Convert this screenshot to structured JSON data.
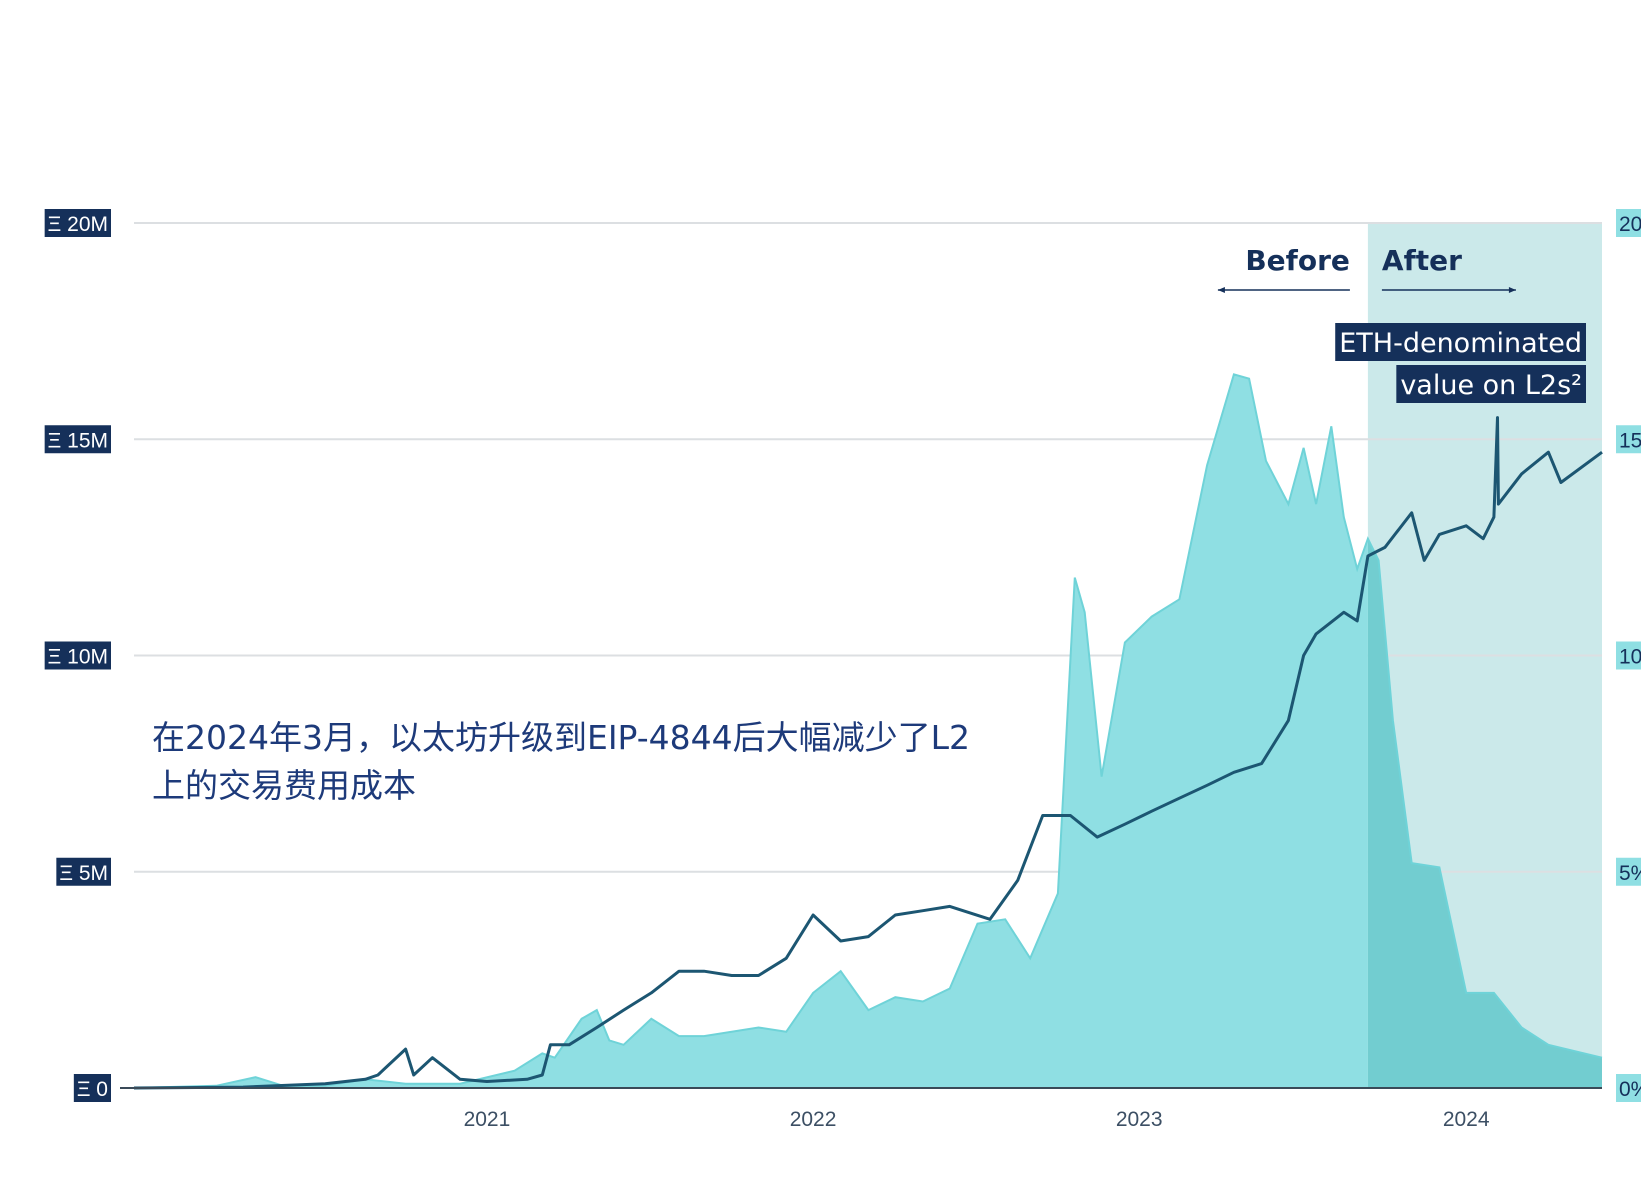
{
  "chart_data": {
    "type": "area",
    "title": "",
    "annotation_lines": [
      "在2024年3月，以太坊升级到EIP-4844后大幅减少了L2",
      "上的交易费用成本"
    ],
    "x_ticks": [
      "2021",
      "2022",
      "2023",
      "2024"
    ],
    "xlim": [
      "2020-06-01",
      "2024-11-30"
    ],
    "y_left": {
      "ticks": [
        "Ξ 0",
        "Ξ 5M",
        "Ξ 10M",
        "Ξ 15M",
        "Ξ 20M"
      ],
      "ylim": [
        0,
        20000000
      ]
    },
    "y_right": {
      "ticks": [
        "0%",
        "5%",
        "10%",
        "15%",
        "20%"
      ],
      "ylim": [
        0,
        20
      ]
    },
    "periods": [
      {
        "label": "Before",
        "direction": "left"
      },
      {
        "label": "After",
        "direction": "right",
        "start": "2024-03-13",
        "end": "2024-11-30"
      }
    ],
    "series": [
      {
        "name": "",
        "axis": "right",
        "kind": "area",
        "color": "#8fdfe3",
        "points": [
          [
            "2020-06-01",
            0
          ],
          [
            "2020-09-01",
            0.05
          ],
          [
            "2020-10-15",
            0.25
          ],
          [
            "2020-11-15",
            0.05
          ],
          [
            "2021-01-01",
            0.05
          ],
          [
            "2021-02-15",
            0.2
          ],
          [
            "2021-04-01",
            0.1
          ],
          [
            "2021-06-01",
            0.1
          ],
          [
            "2021-08-01",
            0.4
          ],
          [
            "2021-09-01",
            0.8
          ],
          [
            "2021-09-15",
            0.7
          ],
          [
            "2021-10-15",
            1.6
          ],
          [
            "2021-11-01",
            1.8
          ],
          [
            "2021-11-15",
            1.1
          ],
          [
            "2021-12-01",
            1.0
          ],
          [
            "2022-01-01",
            1.6
          ],
          [
            "2022-02-01",
            1.2
          ],
          [
            "2022-03-01",
            1.2
          ],
          [
            "2022-04-01",
            1.3
          ],
          [
            "2022-05-01",
            1.4
          ],
          [
            "2022-06-01",
            1.3
          ],
          [
            "2022-07-01",
            2.2
          ],
          [
            "2022-08-01",
            2.7
          ],
          [
            "2022-09-01",
            1.8
          ],
          [
            "2022-10-01",
            2.1
          ],
          [
            "2022-11-01",
            2.0
          ],
          [
            "2022-12-01",
            2.3
          ],
          [
            "2023-01-01",
            3.8
          ],
          [
            "2023-02-01",
            3.9
          ],
          [
            "2023-03-01",
            3.0
          ],
          [
            "2023-04-01",
            4.5
          ],
          [
            "2023-04-20",
            11.8
          ],
          [
            "2023-05-01",
            11.0
          ],
          [
            "2023-05-20",
            7.2
          ],
          [
            "2023-06-15",
            10.3
          ],
          [
            "2023-07-15",
            10.9
          ],
          [
            "2023-08-15",
            11.3
          ],
          [
            "2023-09-15",
            14.4
          ],
          [
            "2023-10-15",
            16.5
          ],
          [
            "2023-11-01",
            16.4
          ],
          [
            "2023-11-20",
            14.5
          ],
          [
            "2023-12-15",
            13.5
          ],
          [
            "2024-01-01",
            14.8
          ],
          [
            "2024-01-15",
            13.5
          ],
          [
            "2024-02-01",
            15.3
          ],
          [
            "2024-02-15",
            13.2
          ],
          [
            "2024-03-01",
            12.0
          ],
          [
            "2024-03-13",
            12.7
          ],
          [
            "2024-03-25",
            12.2
          ],
          [
            "2024-04-10",
            8.5
          ],
          [
            "2024-05-01",
            5.2
          ],
          [
            "2024-06-01",
            5.1
          ],
          [
            "2024-07-01",
            2.2
          ],
          [
            "2024-08-01",
            2.2
          ],
          [
            "2024-09-01",
            1.4
          ],
          [
            "2024-10-01",
            1.0
          ],
          [
            "2024-11-30",
            0.7
          ]
        ]
      },
      {
        "name": "ETH-denominated value on L2s²",
        "axis": "left",
        "kind": "line",
        "color": "#1c5672",
        "points": [
          [
            "2020-06-01",
            0
          ],
          [
            "2020-10-01",
            20000
          ],
          [
            "2021-01-01",
            100000
          ],
          [
            "2021-02-15",
            200000
          ],
          [
            "2021-03-01",
            300000
          ],
          [
            "2021-04-01",
            900000
          ],
          [
            "2021-04-10",
            300000
          ],
          [
            "2021-05-01",
            700000
          ],
          [
            "2021-06-01",
            200000
          ],
          [
            "2021-07-01",
            150000
          ],
          [
            "2021-08-15",
            200000
          ],
          [
            "2021-09-01",
            300000
          ],
          [
            "2021-09-10",
            1000000
          ],
          [
            "2021-10-01",
            1000000
          ],
          [
            "2021-11-01",
            1400000
          ],
          [
            "2021-12-01",
            1800000
          ],
          [
            "2022-01-01",
            2200000
          ],
          [
            "2022-02-01",
            2700000
          ],
          [
            "2022-03-01",
            2700000
          ],
          [
            "2022-04-01",
            2600000
          ],
          [
            "2022-05-01",
            2600000
          ],
          [
            "2022-06-01",
            3000000
          ],
          [
            "2022-07-01",
            4000000
          ],
          [
            "2022-08-01",
            3400000
          ],
          [
            "2022-09-01",
            3500000
          ],
          [
            "2022-10-01",
            4000000
          ],
          [
            "2022-11-01",
            4100000
          ],
          [
            "2022-12-01",
            4200000
          ],
          [
            "2023-01-15",
            3900000
          ],
          [
            "2023-02-15",
            4800000
          ],
          [
            "2023-03-15",
            6300000
          ],
          [
            "2023-04-15",
            6300000
          ],
          [
            "2023-05-15",
            5800000
          ],
          [
            "2023-06-15",
            6100000
          ],
          [
            "2023-07-15",
            6400000
          ],
          [
            "2023-08-15",
            6700000
          ],
          [
            "2023-09-15",
            7000000
          ],
          [
            "2023-10-15",
            7300000
          ],
          [
            "2023-11-15",
            7500000
          ],
          [
            "2023-12-15",
            8500000
          ],
          [
            "2024-01-01",
            10000000
          ],
          [
            "2024-01-15",
            10500000
          ],
          [
            "2024-02-15",
            11000000
          ],
          [
            "2024-03-01",
            10800000
          ],
          [
            "2024-03-13",
            12300000
          ],
          [
            "2024-04-01",
            12500000
          ],
          [
            "2024-05-01",
            13300000
          ],
          [
            "2024-05-15",
            12200000
          ],
          [
            "2024-06-01",
            12800000
          ],
          [
            "2024-07-01",
            13000000
          ],
          [
            "2024-07-20",
            12700000
          ],
          [
            "2024-08-01",
            13200000
          ],
          [
            "2024-08-05",
            15500000
          ],
          [
            "2024-08-06",
            13500000
          ],
          [
            "2024-09-01",
            14200000
          ],
          [
            "2024-10-01",
            14700000
          ],
          [
            "2024-10-15",
            14000000
          ],
          [
            "2024-11-30",
            14700000
          ]
        ]
      }
    ],
    "grid": true
  }
}
